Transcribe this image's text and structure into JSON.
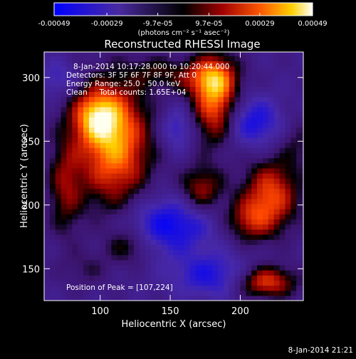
{
  "chart_data": {
    "type": "heatmap",
    "title": "Reconstructed RHESSI Image",
    "xlabel": "Heliocentric X (arcsec)",
    "ylabel": "Heliocentric Y (arcsec)",
    "xlim": [
      60,
      245
    ],
    "ylim": [
      125,
      320
    ],
    "x_ticks": [
      "100",
      "150",
      "200"
    ],
    "x_tick_values": [
      100,
      150,
      200
    ],
    "y_ticks": [
      "150",
      "200",
      "250",
      "300"
    ],
    "y_tick_values": [
      150,
      200,
      250,
      300
    ],
    "colorbar": {
      "tick_labels": [
        "-0.00049",
        "-0.00029",
        "-9.7e-05",
        "9.7e-05",
        "0.00029",
        "0.00049"
      ],
      "tick_values": [
        -0.00049,
        -0.00029,
        -9.7e-05,
        9.7e-05,
        0.00029,
        0.00049
      ],
      "range": [
        -0.00049,
        0.00049
      ],
      "label": "(photons cm⁻² s⁻¹ asec⁻²)"
    },
    "annotations": [
      "8-Jan-2014 10:17:28.000 to 10:20:44.000",
      "Detectors: 3F 5F 6F 7F 8F 9F, Att 0",
      "Energy Range: 25.0 - 50.0 keV",
      "Clean     Total counts: 1.65E+04"
    ],
    "peak_label": "Position of Peak = [107,224]",
    "peak": [
      107,
      224
    ],
    "sources": [
      {
        "x": 110,
        "y": 248,
        "sx": 18,
        "sy": 34,
        "amp": 0.00049
      },
      {
        "x": 97,
        "y": 270,
        "sx": 12,
        "sy": 14,
        "amp": 0.00036
      },
      {
        "x": 182,
        "y": 284,
        "sx": 11,
        "sy": 24,
        "amp": 0.00045
      },
      {
        "x": 175,
        "y": 300,
        "sx": 16,
        "sy": 10,
        "amp": 0.00024
      },
      {
        "x": 222,
        "y": 208,
        "sx": 14,
        "sy": 20,
        "amp": 0.00038
      },
      {
        "x": 172,
        "y": 212,
        "sx": 11,
        "sy": 13,
        "amp": 0.00029
      },
      {
        "x": 205,
        "y": 188,
        "sx": 12,
        "sy": 12,
        "amp": 0.00024
      },
      {
        "x": 218,
        "y": 140,
        "sx": 15,
        "sy": 9,
        "amp": 0.00038
      },
      {
        "x": 75,
        "y": 215,
        "sx": 9,
        "sy": 28,
        "amp": 0.00023
      },
      {
        "x": 120,
        "y": 168,
        "sx": 11,
        "sy": 10,
        "amp": 0.00018
      },
      {
        "x": 90,
        "y": 150,
        "sx": 12,
        "sy": 10,
        "amp": 0.0001
      },
      {
        "x": 140,
        "y": 305,
        "sx": 14,
        "sy": 9,
        "amp": 0.00014
      },
      {
        "x": 240,
        "y": 250,
        "sx": 8,
        "sy": 14,
        "amp": 0.00012
      },
      {
        "x": 155,
        "y": 260,
        "sx": 8,
        "sy": 12,
        "amp": -0.0002
      },
      {
        "x": 150,
        "y": 185,
        "sx": 22,
        "sy": 16,
        "amp": -0.0003
      },
      {
        "x": 210,
        "y": 265,
        "sx": 14,
        "sy": 14,
        "amp": -0.00026
      },
      {
        "x": 70,
        "y": 300,
        "sx": 10,
        "sy": 10,
        "amp": -0.00016
      },
      {
        "x": 180,
        "y": 145,
        "sx": 20,
        "sy": 12,
        "amp": -0.00024
      }
    ]
  },
  "footer": {
    "timestamp": "8-Jan-2014 21:21"
  }
}
